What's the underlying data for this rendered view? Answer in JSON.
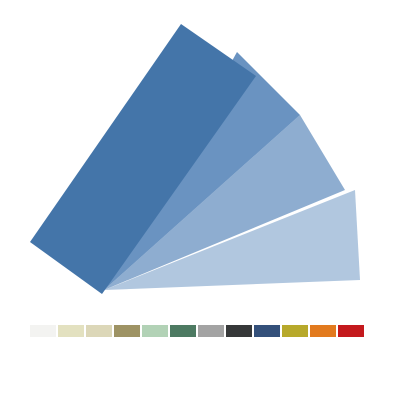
{
  "fan_cards": [
    {
      "name": "fan-card-lightest",
      "color": "#b1c7df"
    },
    {
      "name": "fan-card-light",
      "color": "#8eadd0"
    },
    {
      "name": "fan-card-medium",
      "color": "#6a93c1"
    },
    {
      "name": "fan-card-dark",
      "color": "#4475a9"
    }
  ],
  "swatches": [
    {
      "name": "swatch-white",
      "color": "#f3f3f1"
    },
    {
      "name": "swatch-cream",
      "color": "#e3e1c0"
    },
    {
      "name": "swatch-beige",
      "color": "#dcd7b8"
    },
    {
      "name": "swatch-olive",
      "color": "#9e9364"
    },
    {
      "name": "swatch-mint",
      "color": "#b2d2b6"
    },
    {
      "name": "swatch-green",
      "color": "#4d7a62"
    },
    {
      "name": "swatch-gray",
      "color": "#a3a3a3"
    },
    {
      "name": "swatch-charcoal",
      "color": "#363839"
    },
    {
      "name": "swatch-navy",
      "color": "#34507a"
    },
    {
      "name": "swatch-mustard",
      "color": "#b7a92b"
    },
    {
      "name": "swatch-orange",
      "color": "#e27a1e"
    },
    {
      "name": "swatch-red",
      "color": "#c4191d"
    }
  ]
}
